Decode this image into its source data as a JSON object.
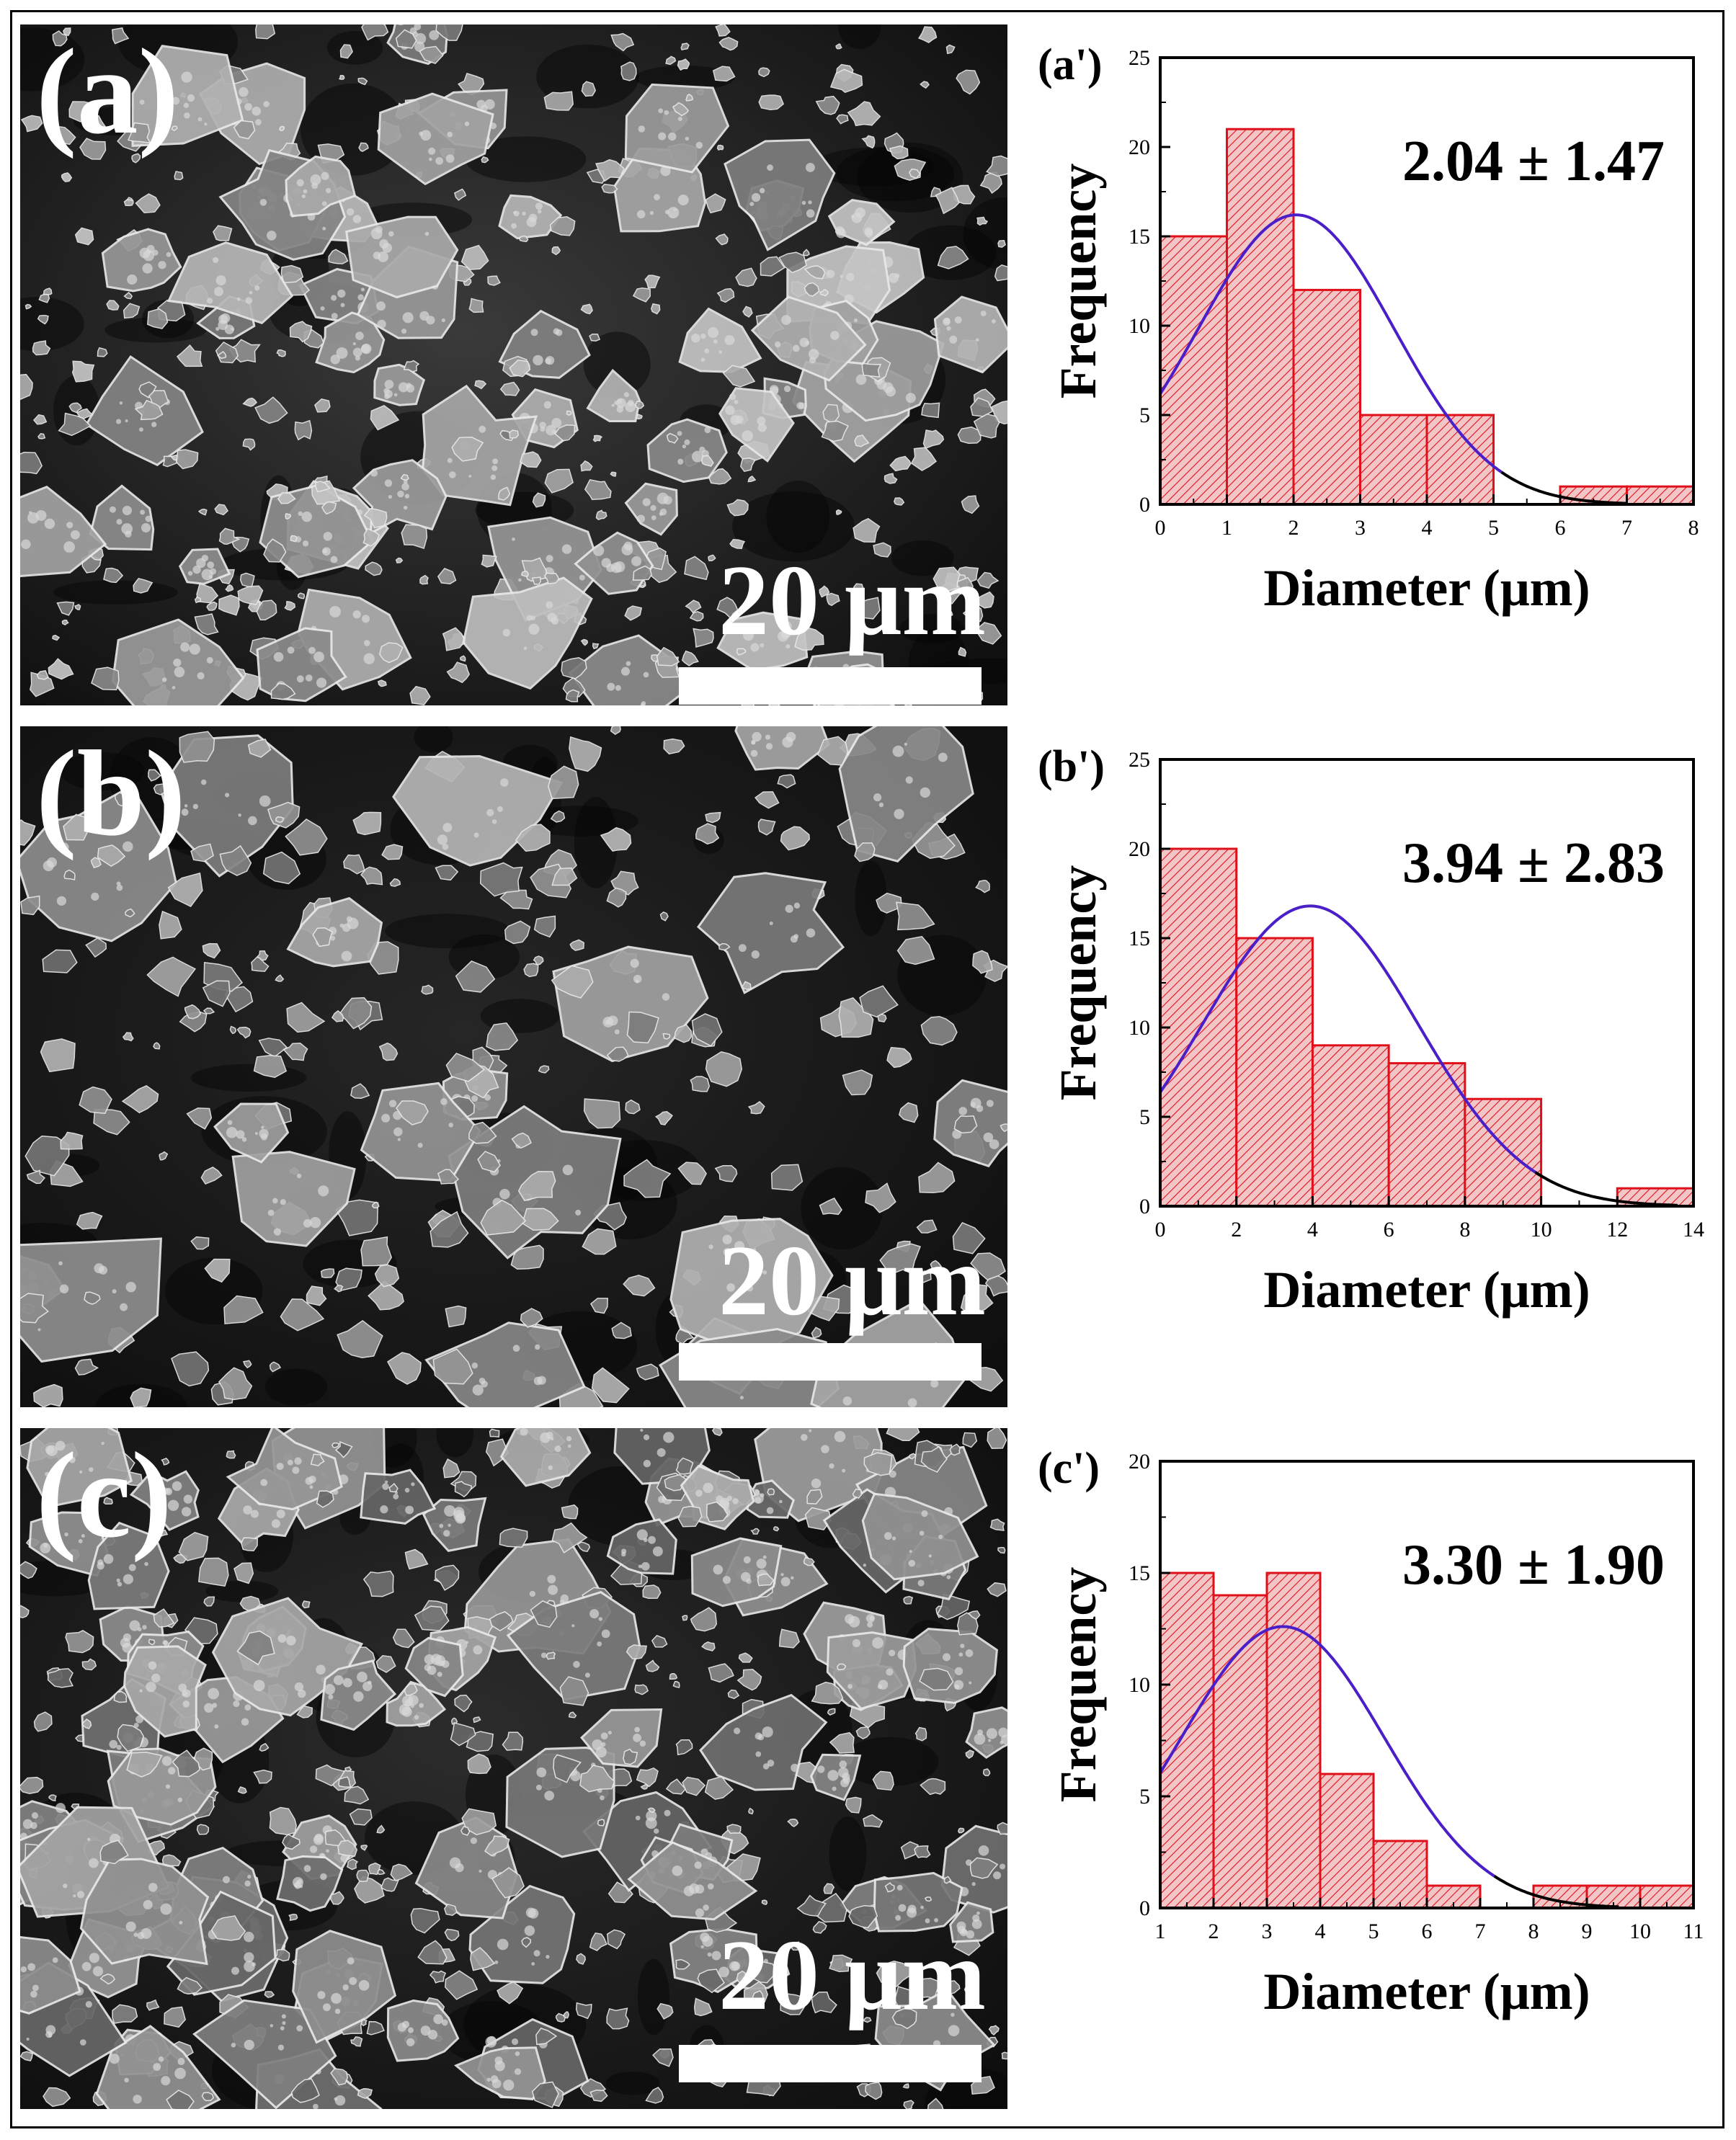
{
  "panels": [
    {
      "letter": "(a)",
      "scale_label": "20 μm"
    },
    {
      "letter": "(b)",
      "scale_label": "20 μm"
    },
    {
      "letter": "(c)",
      "scale_label": "20 μm"
    }
  ],
  "colors": {
    "bar_stroke": "#e0101a",
    "bar_fill": "#f2c6c6",
    "fit_curve": "#4b1fc8",
    "fit_tail": "#000000"
  },
  "chart_data": [
    {
      "type": "bar",
      "panel_label": "(a')",
      "annotation": "2.04 ± 1.47",
      "xlabel": "Diameter (μm)",
      "ylabel": "Frequency",
      "bin_edges": [
        0,
        1,
        2,
        3,
        4,
        5,
        6,
        7,
        8
      ],
      "values": [
        15,
        21,
        12,
        5,
        5,
        0,
        1,
        1
      ],
      "xlim": [
        0,
        8
      ],
      "ylim": [
        0,
        25
      ],
      "xticks": [
        0,
        1,
        2,
        3,
        4,
        5,
        6,
        7,
        8
      ],
      "yticks": [
        0,
        5,
        10,
        15,
        20,
        25
      ],
      "fit": {
        "type": "normal",
        "mean": 2.04,
        "sd": 1.47,
        "peak": 16.2
      }
    },
    {
      "type": "bar",
      "panel_label": "(b')",
      "annotation": "3.94 ± 2.83",
      "xlabel": "Diameter (μm)",
      "ylabel": "Frequency",
      "bin_edges": [
        0,
        2,
        4,
        6,
        8,
        10,
        12,
        14
      ],
      "values": [
        20,
        15,
        9,
        8,
        6,
        0,
        1
      ],
      "xlim": [
        0,
        14
      ],
      "ylim": [
        0,
        25
      ],
      "xticks": [
        0,
        2,
        4,
        6,
        8,
        10,
        12,
        14
      ],
      "yticks": [
        0,
        5,
        10,
        15,
        20,
        25
      ],
      "fit": {
        "type": "normal",
        "mean": 3.94,
        "sd": 2.83,
        "peak": 16.8
      }
    },
    {
      "type": "bar",
      "panel_label": "(c')",
      "annotation": "3.30 ± 1.90",
      "xlabel": "Diameter (μm)",
      "ylabel": "Frequency",
      "bin_edges": [
        1,
        2,
        3,
        4,
        5,
        6,
        7,
        8,
        9,
        10,
        11
      ],
      "values": [
        15,
        14,
        15,
        6,
        3,
        1,
        0,
        1,
        1,
        1
      ],
      "xlim": [
        1,
        11
      ],
      "ylim": [
        0,
        20
      ],
      "xticks": [
        1,
        2,
        3,
        4,
        5,
        6,
        7,
        8,
        9,
        10,
        11
      ],
      "yticks": [
        0,
        5,
        10,
        15,
        20
      ],
      "fit": {
        "type": "normal",
        "mean": 3.3,
        "sd": 1.9,
        "peak": 12.6
      }
    }
  ]
}
